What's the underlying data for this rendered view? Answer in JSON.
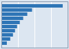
{
  "chart_data": {
    "type": "bar",
    "orientation": "horizontal",
    "categories": [
      null,
      null,
      null,
      null,
      null,
      null,
      null,
      null,
      null,
      null
    ],
    "values": [
      9.0,
      4.5,
      3.8,
      3.2,
      2.7,
      2.3,
      2.0,
      1.7,
      1.3,
      0.8
    ],
    "color": "#2e75b6",
    "xlim": [
      0,
      9.72
    ],
    "xticks": [
      2.43,
      4.86,
      7.29,
      9.72
    ],
    "grid": true,
    "tick_labels": false
  }
}
